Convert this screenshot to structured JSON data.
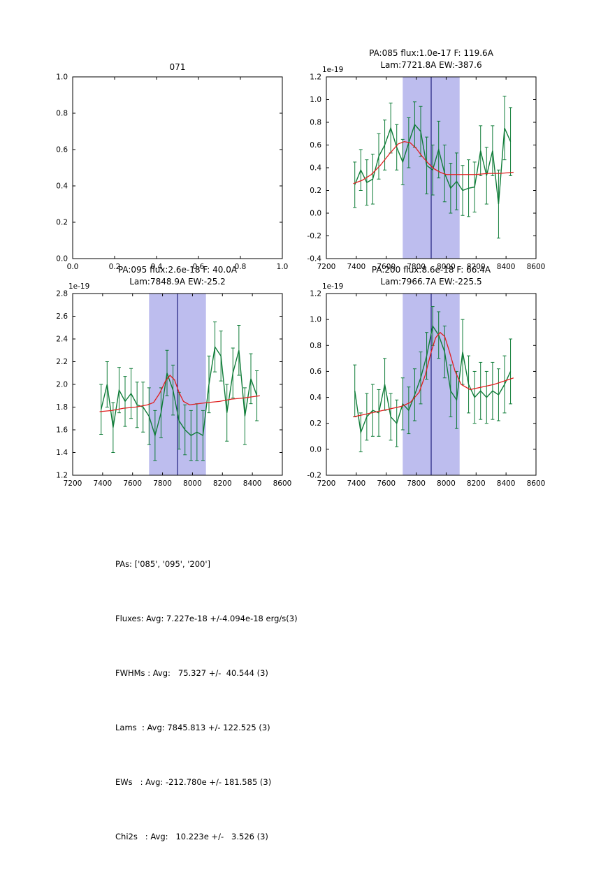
{
  "figure_colors": {
    "spectrum": "#0f7c38",
    "fit": "#e02020",
    "band": "#bdbdee",
    "vline": "#000066",
    "frame": "#000000",
    "background": "#ffffff"
  },
  "chart_data": [
    {
      "type": "line",
      "title_lines": [
        "071"
      ],
      "offset_label": null,
      "x_min": 0,
      "x_max": 1,
      "y_min": 0,
      "y_max": 1,
      "x_tick_values": [
        0,
        0.2,
        0.4,
        0.6,
        0.8,
        1.0
      ],
      "x_tick_labels": [
        "0.0",
        "0.2",
        "0.4",
        "0.6",
        "0.8",
        "1.0"
      ],
      "y_tick_values": [
        0,
        0.2,
        0.4,
        0.6,
        0.8,
        1.0
      ],
      "y_tick_labels": [
        "0.0",
        "0.2",
        "0.4",
        "0.6",
        "0.8",
        "1.0"
      ],
      "band": null,
      "vline": null,
      "spectrum": null,
      "fit": null
    },
    {
      "type": "line",
      "title_lines": [
        "PA:085 flux:1.0e-17 F: 119.6A",
        "Lam:7721.8A EW:-387.6"
      ],
      "offset_label": "1e-19",
      "x_min": 7200,
      "x_max": 8600,
      "y_min": -0.4,
      "y_max": 1.2,
      "x_tick_values": [
        7200,
        7400,
        7600,
        7800,
        8000,
        8200,
        8400,
        8600
      ],
      "x_tick_labels": [
        "7200",
        "7400",
        "7600",
        "7800",
        "8000",
        "8200",
        "8400",
        "8600"
      ],
      "y_tick_values": [
        -0.4,
        -0.2,
        0.0,
        0.2,
        0.4,
        0.6,
        0.8,
        1.0,
        1.2
      ],
      "y_tick_labels": [
        "-0.4",
        "-0.2",
        "0.0",
        "0.2",
        "0.4",
        "0.6",
        "0.8",
        "1.0",
        "1.2"
      ],
      "band": [
        7710,
        8090
      ],
      "vline": 7900,
      "spectrum": {
        "x": [
          7390,
          7430,
          7470,
          7510,
          7550,
          7590,
          7630,
          7670,
          7710,
          7750,
          7790,
          7830,
          7870,
          7910,
          7950,
          7990,
          8030,
          8070,
          8110,
          8150,
          8190,
          8230,
          8270,
          8310,
          8350,
          8390,
          8430
        ],
        "y": [
          0.25,
          0.38,
          0.27,
          0.3,
          0.5,
          0.6,
          0.75,
          0.58,
          0.45,
          0.62,
          0.78,
          0.72,
          0.42,
          0.38,
          0.56,
          0.35,
          0.22,
          0.28,
          0.2,
          0.22,
          0.23,
          0.55,
          0.33,
          0.55,
          0.08,
          0.75,
          0.63
        ],
        "yerr": [
          0.2,
          0.18,
          0.2,
          0.22,
          0.2,
          0.22,
          0.22,
          0.2,
          0.2,
          0.22,
          0.2,
          0.22,
          0.25,
          0.22,
          0.25,
          0.25,
          0.22,
          0.25,
          0.22,
          0.25,
          0.22,
          0.22,
          0.25,
          0.22,
          0.3,
          0.28,
          0.3
        ]
      },
      "fit": {
        "x": [
          7380,
          7440,
          7500,
          7560,
          7620,
          7680,
          7720,
          7760,
          7800,
          7840,
          7880,
          7920,
          7960,
          8000,
          8060,
          8120,
          8200,
          8280,
          8360,
          8450
        ],
        "y": [
          0.26,
          0.29,
          0.34,
          0.42,
          0.52,
          0.61,
          0.63,
          0.62,
          0.57,
          0.5,
          0.44,
          0.39,
          0.36,
          0.34,
          0.34,
          0.34,
          0.34,
          0.35,
          0.35,
          0.36
        ]
      }
    },
    {
      "type": "line",
      "title_lines": [
        "PA:095 flux:2.6e-18 F: 40.0A",
        "Lam:7848.9A EW:-25.2"
      ],
      "offset_label": "1e-19",
      "x_min": 7200,
      "x_max": 8600,
      "y_min": 1.2,
      "y_max": 2.8,
      "x_tick_values": [
        7200,
        7400,
        7600,
        7800,
        8000,
        8200,
        8400,
        8600
      ],
      "x_tick_labels": [
        "7200",
        "7400",
        "7600",
        "7800",
        "8000",
        "8200",
        "8400",
        "8600"
      ],
      "y_tick_values": [
        1.2,
        1.4,
        1.6,
        1.8,
        2.0,
        2.2,
        2.4,
        2.6,
        2.8
      ],
      "y_tick_labels": [
        "1.2",
        "1.4",
        "1.6",
        "1.8",
        "2.0",
        "2.2",
        "2.4",
        "2.6",
        "2.8"
      ],
      "band": [
        7710,
        8090
      ],
      "vline": 7900,
      "spectrum": {
        "x": [
          7390,
          7430,
          7470,
          7510,
          7550,
          7590,
          7630,
          7670,
          7710,
          7750,
          7790,
          7830,
          7870,
          7910,
          7950,
          7990,
          8030,
          8070,
          8110,
          8150,
          8190,
          8230,
          8270,
          8310,
          8350,
          8390,
          8430
        ],
        "y": [
          1.78,
          2.0,
          1.62,
          1.95,
          1.85,
          1.92,
          1.82,
          1.8,
          1.72,
          1.55,
          1.75,
          2.1,
          1.95,
          1.68,
          1.6,
          1.55,
          1.58,
          1.55,
          2.0,
          2.33,
          2.25,
          1.75,
          2.1,
          2.3,
          1.72,
          2.05,
          1.9
        ],
        "yerr": [
          0.22,
          0.2,
          0.22,
          0.2,
          0.22,
          0.22,
          0.2,
          0.22,
          0.25,
          0.22,
          0.22,
          0.2,
          0.22,
          0.25,
          0.22,
          0.22,
          0.25,
          0.22,
          0.25,
          0.22,
          0.22,
          0.25,
          0.22,
          0.22,
          0.25,
          0.22,
          0.22
        ]
      },
      "fit": {
        "x": [
          7380,
          7460,
          7540,
          7620,
          7700,
          7740,
          7780,
          7820,
          7850,
          7880,
          7910,
          7940,
          7980,
          8040,
          8100,
          8180,
          8260,
          8340,
          8450
        ],
        "y": [
          1.76,
          1.77,
          1.79,
          1.8,
          1.82,
          1.84,
          1.92,
          2.03,
          2.08,
          2.04,
          1.93,
          1.85,
          1.82,
          1.83,
          1.84,
          1.85,
          1.87,
          1.88,
          1.9
        ]
      }
    },
    {
      "type": "line",
      "title_lines": [
        "PA:200 flux:8.6e-18 F: 66.4A",
        "Lam:7966.7A EW:-225.5"
      ],
      "offset_label": "1e-19",
      "x_min": 7200,
      "x_max": 8600,
      "y_min": -0.2,
      "y_max": 1.2,
      "x_tick_values": [
        7200,
        7400,
        7600,
        7800,
        8000,
        8200,
        8400,
        8600
      ],
      "x_tick_labels": [
        "7200",
        "7400",
        "7600",
        "7800",
        "8000",
        "8200",
        "8400",
        "8600"
      ],
      "y_tick_values": [
        -0.2,
        0.0,
        0.2,
        0.4,
        0.6,
        0.8,
        1.0,
        1.2
      ],
      "y_tick_labels": [
        "-0.2",
        "0.0",
        "0.2",
        "0.4",
        "0.6",
        "0.8",
        "1.0",
        "1.2"
      ],
      "band": [
        7710,
        8090
      ],
      "vline": 7900,
      "spectrum": {
        "x": [
          7390,
          7430,
          7470,
          7510,
          7550,
          7590,
          7630,
          7670,
          7710,
          7750,
          7790,
          7830,
          7870,
          7910,
          7950,
          7990,
          8030,
          8070,
          8110,
          8150,
          8190,
          8230,
          8270,
          8310,
          8350,
          8390,
          8430
        ],
        "y": [
          0.45,
          0.13,
          0.25,
          0.3,
          0.28,
          0.5,
          0.25,
          0.2,
          0.35,
          0.3,
          0.42,
          0.55,
          0.72,
          0.95,
          0.88,
          0.75,
          0.45,
          0.38,
          0.75,
          0.5,
          0.4,
          0.45,
          0.4,
          0.45,
          0.42,
          0.5,
          0.6
        ],
        "yerr": [
          0.2,
          0.15,
          0.18,
          0.2,
          0.18,
          0.2,
          0.18,
          0.18,
          0.2,
          0.18,
          0.2,
          0.2,
          0.18,
          0.15,
          0.18,
          0.2,
          0.2,
          0.22,
          0.25,
          0.22,
          0.2,
          0.22,
          0.2,
          0.22,
          0.2,
          0.22,
          0.25
        ]
      },
      "fit": {
        "x": [
          7380,
          7460,
          7540,
          7620,
          7700,
          7760,
          7820,
          7860,
          7900,
          7930,
          7960,
          7990,
          8020,
          8060,
          8100,
          8160,
          8240,
          8320,
          8450
        ],
        "y": [
          0.25,
          0.27,
          0.29,
          0.31,
          0.33,
          0.36,
          0.44,
          0.57,
          0.75,
          0.86,
          0.9,
          0.87,
          0.76,
          0.6,
          0.5,
          0.46,
          0.48,
          0.5,
          0.55
        ]
      }
    }
  ],
  "summary": {
    "lines": [
      "PAs: ['085', '095', '200']",
      "Fluxes: Avg: 7.227e-18 +/-4.094e-18 erg/s(3)",
      "FWHMs : Avg:   75.327 +/-  40.544 (3)",
      "Lams  : Avg: 7845.813 +/- 122.525 (3)",
      "EWs   : Avg: -212.780e +/- 181.585 (3)",
      "Chi2s   : Avg:   10.223e +/-   3.526 (3)"
    ]
  }
}
